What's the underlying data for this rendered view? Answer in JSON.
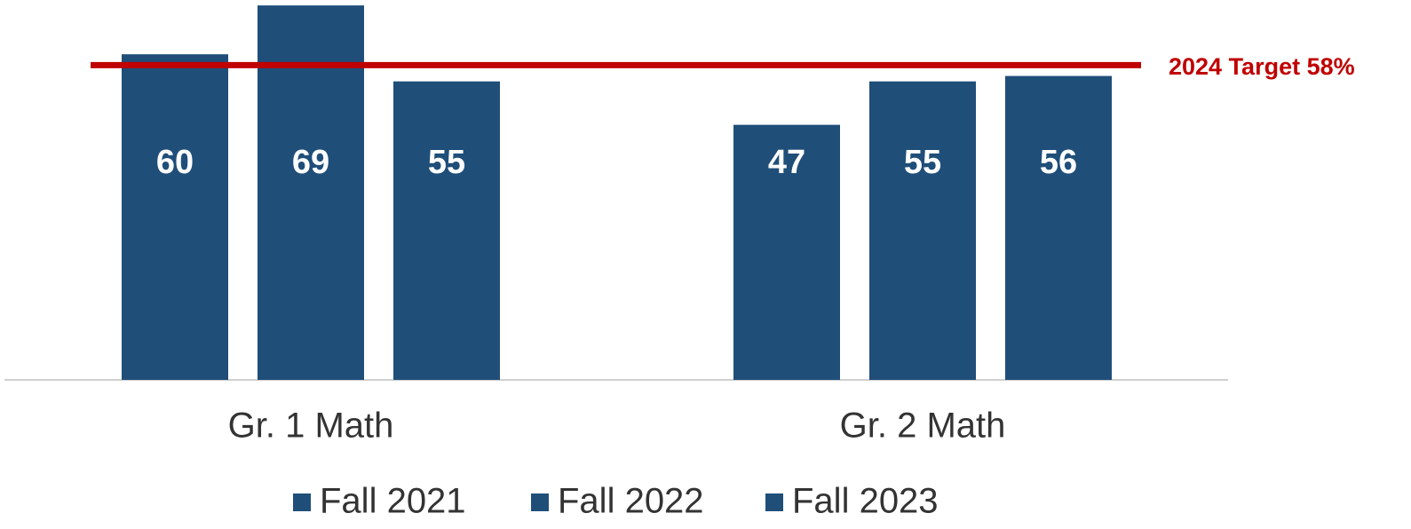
{
  "chart_data": {
    "type": "bar",
    "categories": [
      "Gr. 1 Math",
      "Gr. 2 Math"
    ],
    "series": [
      {
        "name": "Fall 2021",
        "color": "#1f4e79",
        "values": [
          60,
          47
        ]
      },
      {
        "name": "Fall 2022",
        "color": "#1f4e79",
        "values": [
          69,
          55
        ]
      },
      {
        "name": "Fall 2023",
        "color": "#1f4e79",
        "values": [
          55,
          56
        ]
      }
    ],
    "ylim": [
      0,
      70
    ],
    "target": {
      "value": 58,
      "label": "2024 Target 58%",
      "color": "#c00000"
    }
  }
}
